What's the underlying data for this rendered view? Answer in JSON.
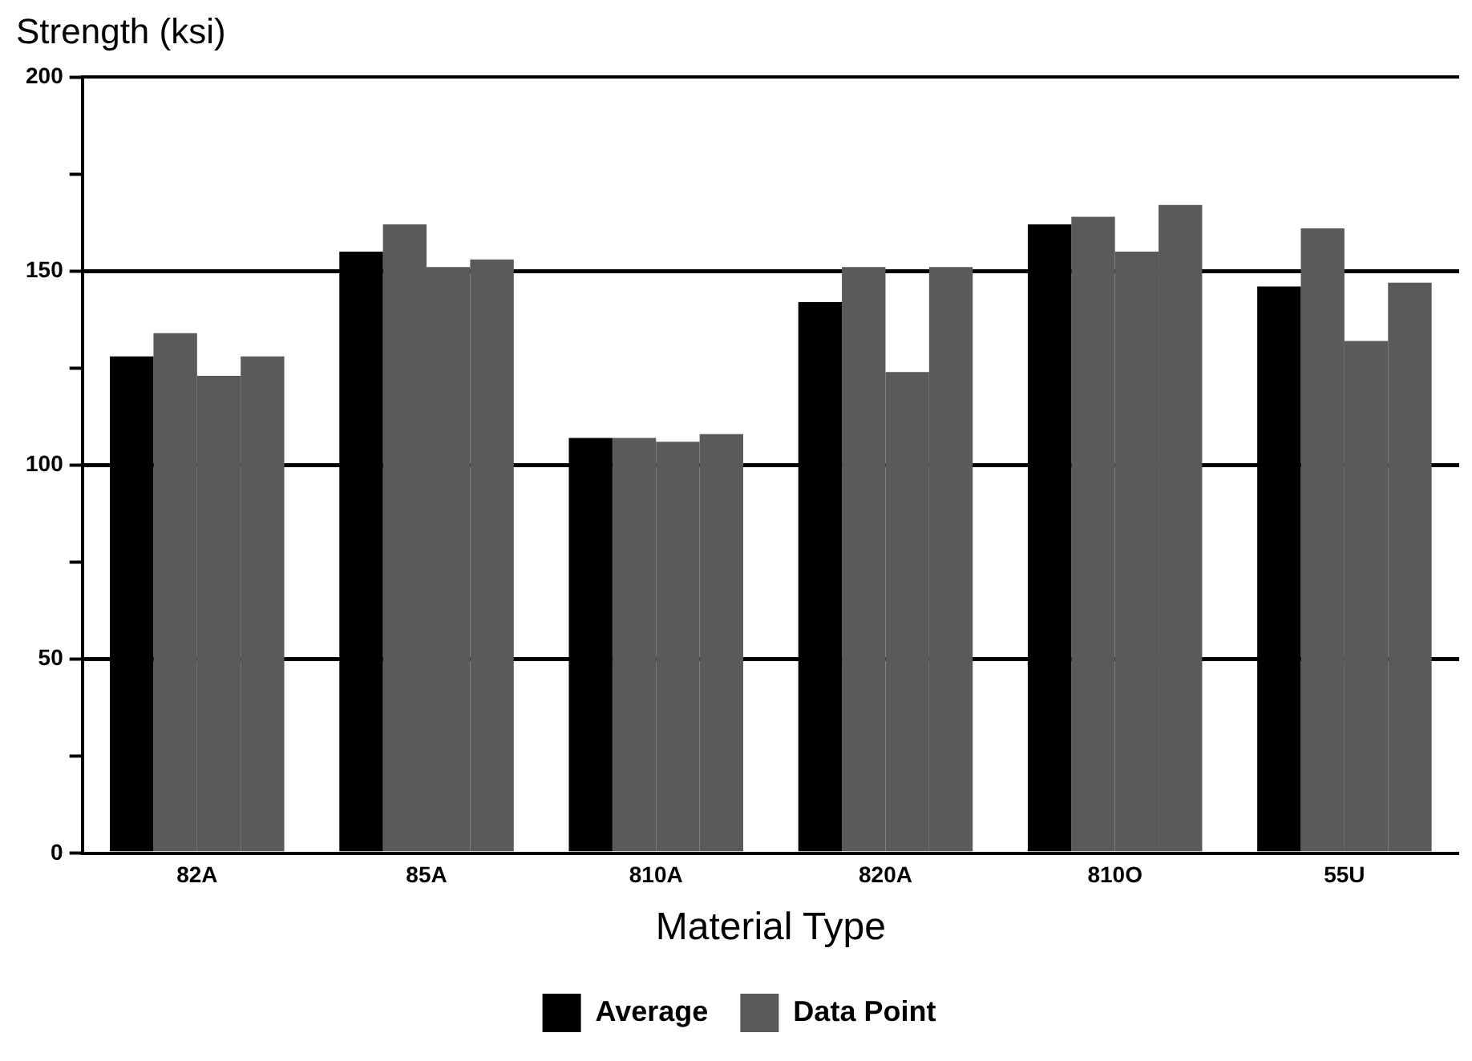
{
  "chart_data": {
    "type": "bar",
    "xlabel": "Material Type",
    "ylabel": "Strength (ksi)",
    "categories": [
      "82A",
      "85A",
      "810A",
      "820A",
      "810O",
      "55U"
    ],
    "series": [
      {
        "name": "Average",
        "color": "#000000",
        "values": [
          128,
          155,
          107,
          142,
          162,
          146
        ]
      },
      {
        "name": "Data Point",
        "color": "#5a5a5a",
        "values": [
          134,
          162,
          107,
          151,
          164,
          161
        ]
      },
      {
        "color": "#5a5a5a",
        "values": [
          123,
          151,
          106,
          124,
          155,
          132
        ]
      },
      {
        "color": "#5a5a5a",
        "values": [
          128,
          153,
          108,
          151,
          167,
          147
        ]
      }
    ],
    "ylim": [
      0,
      200
    ],
    "yticks": [
      0,
      {
        "value": 25,
        "label": null
      },
      50,
      {
        "value": 75,
        "label": null
      },
      100,
      {
        "value": 125,
        "label": null
      },
      150,
      {
        "value": 175,
        "label": null
      },
      200
    ],
    "grid": "y",
    "legend": "bottom"
  }
}
